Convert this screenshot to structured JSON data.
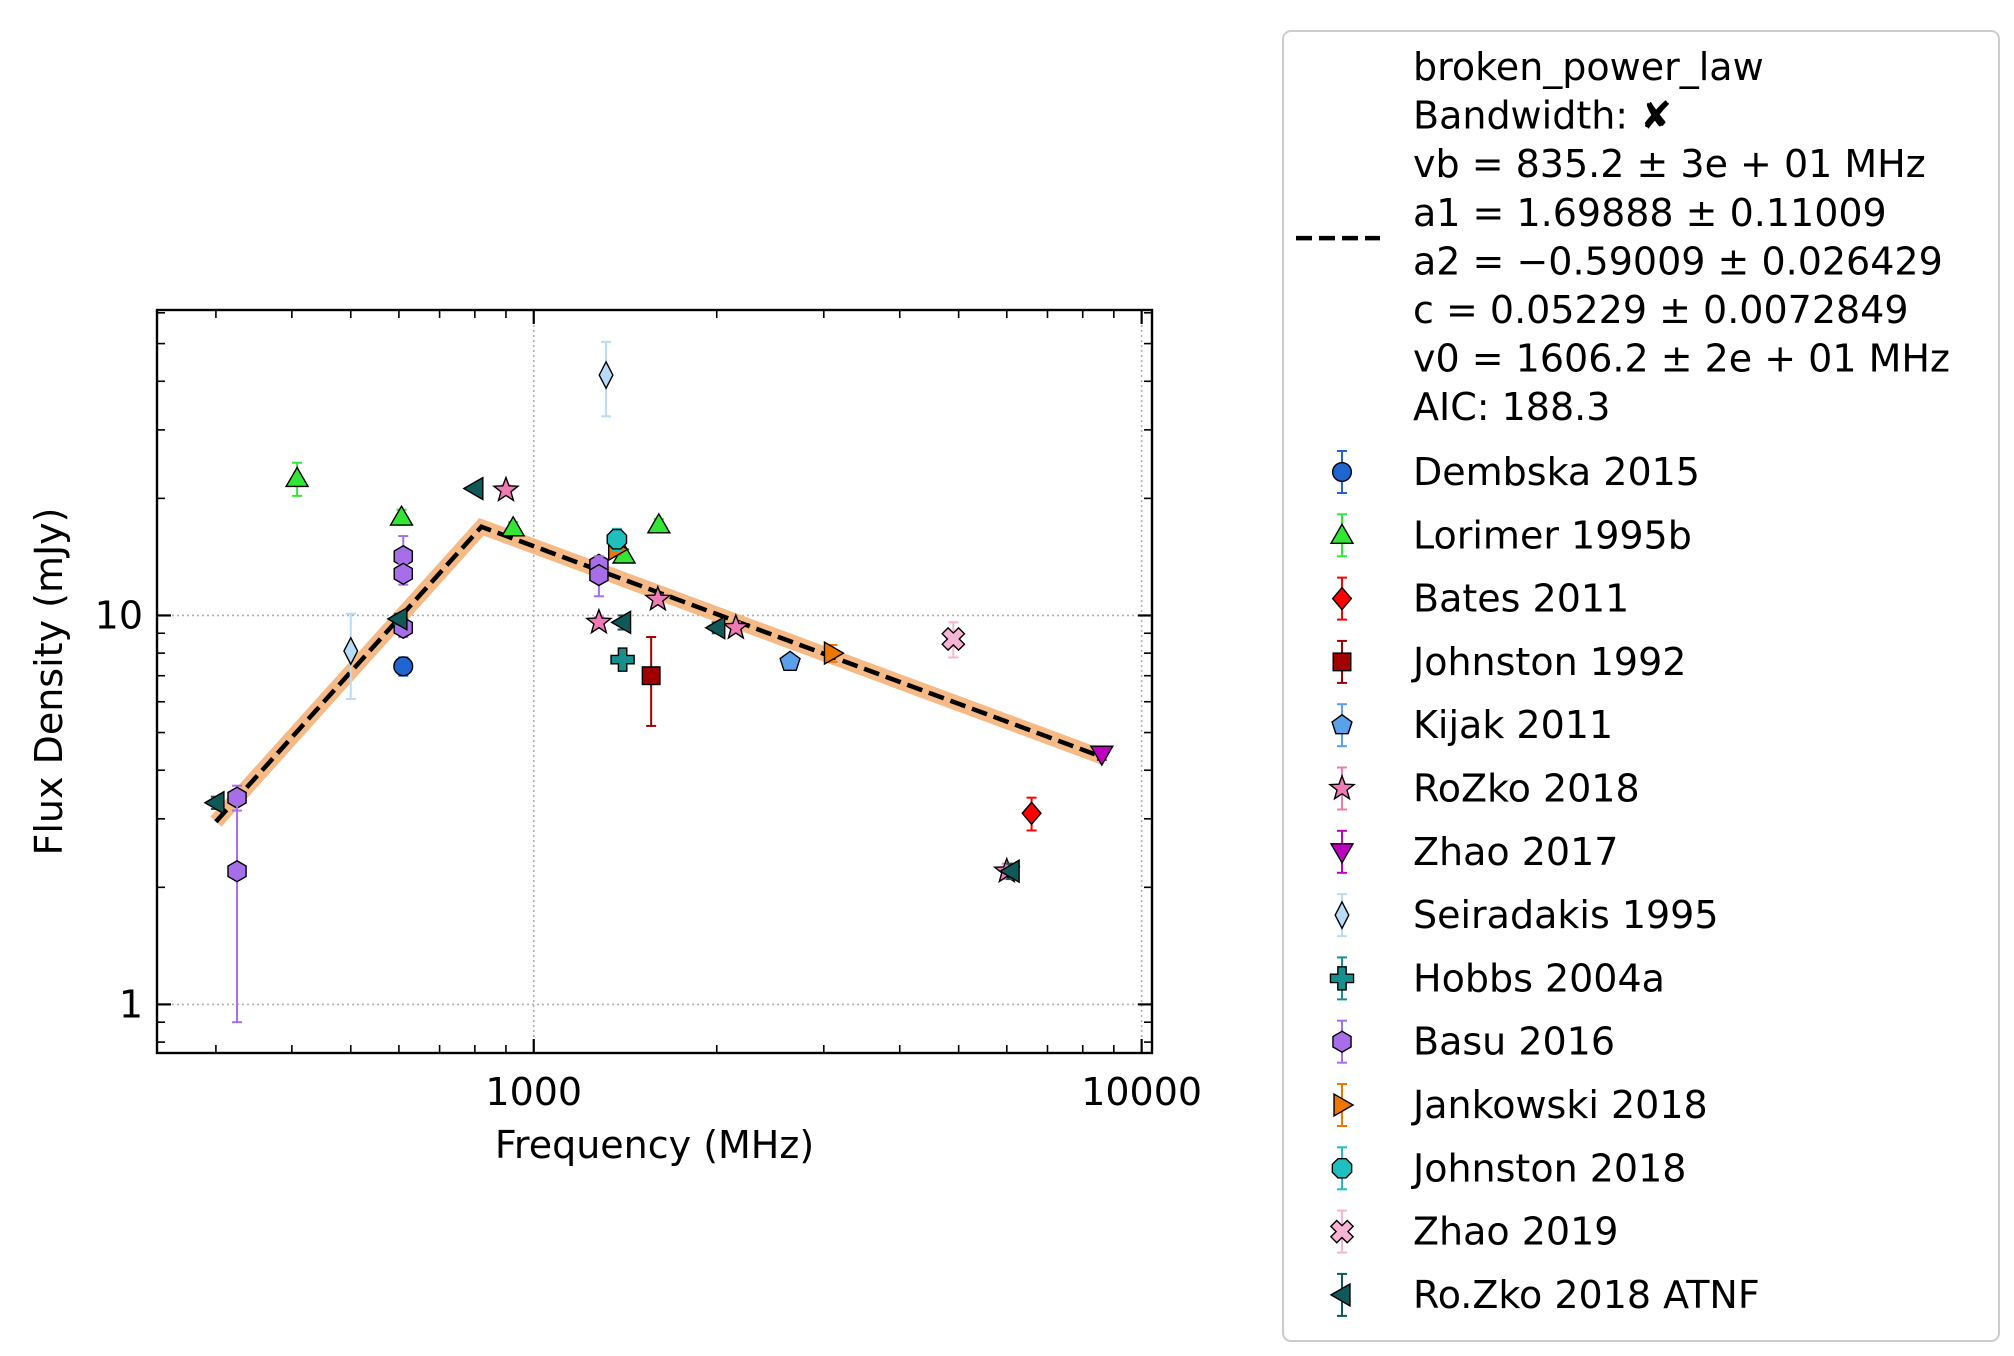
{
  "chart_data": {
    "type": "scatter",
    "title": "",
    "xlabel": "Frequency (MHz)",
    "ylabel": "Flux Density (mJy)",
    "xscale": "log",
    "yscale": "log",
    "xlim": [
      240,
      10400
    ],
    "ylim": [
      0.75,
      61
    ],
    "x_ticks": [
      {
        "value": 1000,
        "label": "1000"
      },
      {
        "value": 10000,
        "label": "10000"
      }
    ],
    "y_ticks": [
      {
        "value": 1,
        "label": "1"
      },
      {
        "value": 10,
        "label": "10"
      }
    ],
    "grid": true,
    "legend_position": "outside-right",
    "fit": {
      "name": "broken_power_law",
      "bandwidth_label": "Bandwidth: ✘",
      "params": [
        "vb = 835.2 ± 3e + 01 MHz",
        "a1 = 1.69888 ± 0.11009",
        "a2 = −0.59009 ± 0.026429",
        "c = 0.05229 ± 0.0072849",
        "v0 = 1606.2 ± 2e + 01 MHz"
      ],
      "aic": "AIC: 188.3",
      "curve": {
        "x": [
          300,
          820,
          8700
        ],
        "y": [
          2.95,
          16.9,
          4.3
        ]
      },
      "band_color": "#f5b27a",
      "line_color": "#000000"
    },
    "series": [
      {
        "name": "Dembska 2015",
        "marker": "circle",
        "color": "#1f66d1",
        "points": [
          {
            "x": 610,
            "y": 7.4,
            "e": 0.4
          }
        ]
      },
      {
        "name": "Lorimer 1995b",
        "marker": "triangle-up",
        "color": "#33e633",
        "points": [
          {
            "x": 408,
            "y": 22.5,
            "e": 2.2
          },
          {
            "x": 606,
            "y": 17.9,
            "e": 0.8
          },
          {
            "x": 925,
            "y": 16.8,
            "e": 0.6
          },
          {
            "x": 1408,
            "y": 14.3,
            "e": 0.5
          },
          {
            "x": 1606,
            "y": 17.1,
            "e": 0.6
          }
        ]
      },
      {
        "name": "Bates 2011",
        "marker": "diamond",
        "color": "#ff0000",
        "points": [
          {
            "x": 6591,
            "y": 3.1,
            "e": 0.3
          }
        ]
      },
      {
        "name": "Johnston 1992",
        "marker": "square",
        "color": "#a00000",
        "points": [
          {
            "x": 1560,
            "y": 7.0,
            "e": 1.8
          }
        ]
      },
      {
        "name": "Kijak 2011",
        "marker": "pentagon",
        "color": "#5aa0ea",
        "points": [
          {
            "x": 2640,
            "y": 7.6,
            "e": 0.2
          }
        ]
      },
      {
        "name": "RoZko 2018",
        "marker": "star",
        "color": "#f07ab4",
        "points": [
          {
            "x": 900,
            "y": 21.0,
            "e": 0.6
          },
          {
            "x": 1280,
            "y": 9.6,
            "e": 0.3
          },
          {
            "x": 1600,
            "y": 11.0,
            "e": 0.3
          },
          {
            "x": 2150,
            "y": 9.3,
            "e": 0.3
          },
          {
            "x": 6000,
            "y": 2.2,
            "e": 0.1
          }
        ]
      },
      {
        "name": "Zhao 2017",
        "marker": "triangle-down",
        "color": "#c000c0",
        "points": [
          {
            "x": 8600,
            "y": 4.4,
            "e": 0.15
          }
        ]
      },
      {
        "name": "Seiradakis 1995",
        "marker": "thin-diamond",
        "color": "#b8dcf8",
        "points": [
          {
            "x": 500,
            "y": 8.1,
            "e": 2.0
          },
          {
            "x": 1315,
            "y": 41.5,
            "e": 9.0
          }
        ]
      },
      {
        "name": "Hobbs 2004a",
        "marker": "plus",
        "color": "#178f8f",
        "points": [
          {
            "x": 1400,
            "y": 7.7,
            "e": 0.4
          }
        ]
      },
      {
        "name": "Basu 2016",
        "marker": "hexagon",
        "color": "#a66ee8",
        "points": [
          {
            "x": 325,
            "y": 3.4,
            "e": 0.25
          },
          {
            "x": 325,
            "y": 2.2,
            "elow": 1.3,
            "ehigh": 1.2
          },
          {
            "x": 610,
            "y": 14.2,
            "e": 1.8
          },
          {
            "x": 610,
            "y": 12.8,
            "e": 0.8
          },
          {
            "x": 610,
            "y": 9.3,
            "e": 0.5
          },
          {
            "x": 1280,
            "y": 13.5,
            "e": 0.6
          },
          {
            "x": 1280,
            "y": 12.7,
            "e": 1.5
          }
        ]
      },
      {
        "name": "Jankowski 2018",
        "marker": "triangle-right",
        "color": "#ee7700",
        "points": [
          {
            "x": 1369,
            "y": 14.8,
            "e": 0.5
          },
          {
            "x": 3100,
            "y": 8.0,
            "e": 0.4
          }
        ]
      },
      {
        "name": "Johnston 2018",
        "marker": "octagon",
        "color": "#1fbfbf",
        "points": [
          {
            "x": 1370,
            "y": 15.7,
            "e": 1.0
          }
        ]
      },
      {
        "name": "Zhao 2019",
        "marker": "x-filled",
        "color": "#f8b4d4",
        "points": [
          {
            "x": 4900,
            "y": 8.7,
            "e": 0.9
          }
        ]
      },
      {
        "name": "Ro.Zko 2018 ATNF",
        "marker": "triangle-left",
        "color": "#0f5a58",
        "points": [
          {
            "x": 300,
            "y": 3.3,
            "e": 0.12
          },
          {
            "x": 600,
            "y": 9.8,
            "e": 0.3
          },
          {
            "x": 800,
            "y": 21.2,
            "e": 0.4
          },
          {
            "x": 1400,
            "y": 9.6,
            "e": 0.4
          },
          {
            "x": 2000,
            "y": 9.3,
            "e": 0.3
          },
          {
            "x": 6100,
            "y": 2.2,
            "e": 0.1
          }
        ]
      }
    ]
  }
}
